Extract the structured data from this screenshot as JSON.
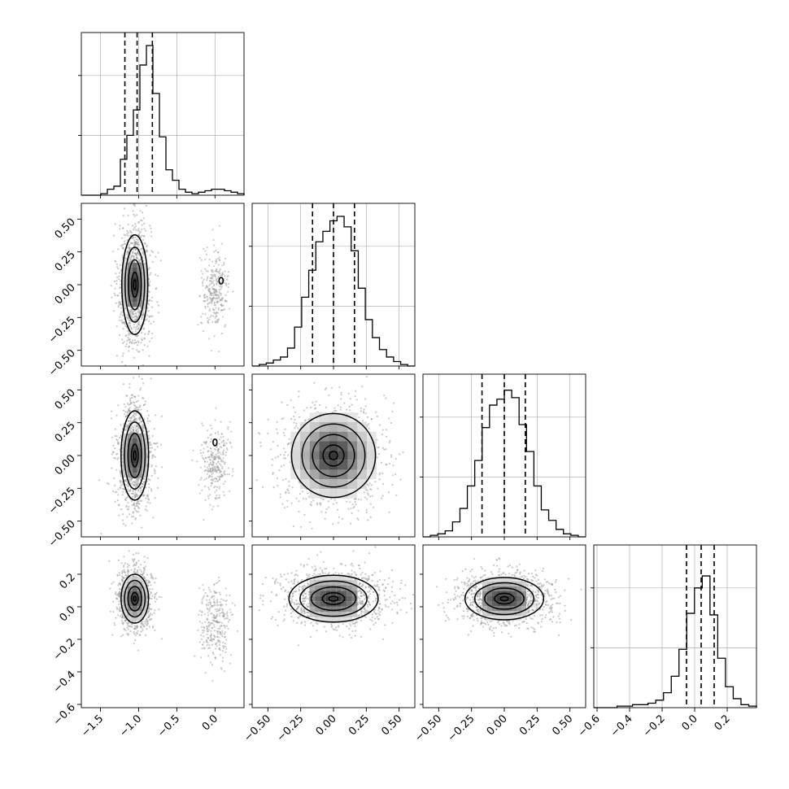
{
  "chart_data": {
    "type": "corner",
    "params": 4,
    "grid": true,
    "colors": {
      "line": "#000000",
      "points": "#9a9a9a",
      "grid": "#b0b0b0"
    },
    "axis_ranges": [
      [
        -1.75,
        0.38
      ],
      [
        -0.62,
        0.62
      ],
      [
        -0.62,
        0.62
      ],
      [
        -0.62,
        0.38
      ]
    ],
    "ticks": [
      [
        -1.5,
        -1.0,
        -0.5,
        0.0
      ],
      [
        -0.5,
        -0.25,
        0.0,
        0.25,
        0.5
      ],
      [
        -0.5,
        -0.25,
        0.0,
        0.25,
        0.5
      ],
      [
        -0.6,
        -0.4,
        -0.2,
        0.0,
        0.2
      ]
    ],
    "tick_labels": [
      [
        "−1.5",
        "−1.0",
        "−0.5",
        "0.0"
      ],
      [
        "−0.50",
        "−0.25",
        "0.00",
        "0.25",
        "0.50"
      ],
      [
        "−0.50",
        "−0.25",
        "0.00",
        "0.25",
        "0.50"
      ],
      [
        "−0.6",
        "−0.4",
        "−0.2",
        "0.0",
        "0.2"
      ]
    ],
    "quantiles": [
      [
        -1.18,
        -1.02,
        -0.82
      ],
      [
        -0.16,
        0.0,
        0.16
      ],
      [
        -0.17,
        0.0,
        0.16
      ],
      [
        -0.05,
        0.04,
        0.12
      ]
    ],
    "histograms": [
      [
        0,
        0,
        0,
        0.01,
        0.04,
        0.06,
        0.24,
        0.4,
        0.57,
        0.87,
        1.0,
        0.68,
        0.39,
        0.17,
        0.1,
        0.04,
        0.02,
        0.01,
        0.02,
        0.03,
        0.04,
        0.04,
        0.03,
        0.02,
        0.01
      ],
      [
        0,
        0.01,
        0.02,
        0.04,
        0.06,
        0.12,
        0.26,
        0.46,
        0.64,
        0.83,
        0.9,
        0.97,
        1.0,
        0.93,
        0.77,
        0.52,
        0.31,
        0.19,
        0.11,
        0.06,
        0.03,
        0.01,
        0
      ],
      [
        0,
        0.01,
        0.02,
        0.04,
        0.1,
        0.19,
        0.34,
        0.51,
        0.73,
        0.88,
        0.92,
        0.98,
        0.93,
        0.75,
        0.57,
        0.34,
        0.18,
        0.11,
        0.05,
        0.02,
        0.01,
        0
      ],
      [
        0,
        0,
        0,
        0.01,
        0.01,
        0.02,
        0.02,
        0.03,
        0.05,
        0.1,
        0.21,
        0.39,
        0.63,
        0.8,
        0.88,
        0.62,
        0.33,
        0.14,
        0.06,
        0.02,
        0.01
      ]
    ],
    "pairs": [
      {
        "x": 0,
        "y": 1,
        "center": [
          -1.05,
          0.0
        ],
        "sigma": [
          0.085,
          0.19
        ],
        "corr": 0.0,
        "secondary": {
          "center": [
            0.0,
            -0.05
          ],
          "sigma": [
            0.09,
            0.15
          ],
          "frac": 0.12
        },
        "island": [
          0.08,
          0.03
        ]
      },
      {
        "x": 0,
        "y": 2,
        "center": [
          -1.05,
          0.0
        ],
        "sigma": [
          0.09,
          0.17
        ],
        "corr": 0.0,
        "secondary": {
          "center": [
            0.0,
            -0.05
          ],
          "sigma": [
            0.09,
            0.15
          ],
          "frac": 0.12
        },
        "island": [
          0.0,
          0.1
        ]
      },
      {
        "x": 1,
        "y": 2,
        "center": [
          0.0,
          0.0
        ],
        "sigma": [
          0.16,
          0.16
        ],
        "corr": 0.0
      },
      {
        "x": 0,
        "y": 3,
        "center": [
          -1.05,
          0.05
        ],
        "sigma": [
          0.09,
          0.075
        ],
        "corr": 0.0,
        "secondary": {
          "center": [
            0.0,
            -0.1
          ],
          "sigma": [
            0.1,
            0.12
          ],
          "frac": 0.12
        }
      },
      {
        "x": 1,
        "y": 3,
        "center": [
          0.0,
          0.05
        ],
        "sigma": [
          0.17,
          0.072
        ],
        "corr": 0.0
      },
      {
        "x": 2,
        "y": 3,
        "center": [
          0.0,
          0.05
        ],
        "sigma": [
          0.15,
          0.065
        ],
        "corr": 0.0
      }
    ]
  }
}
